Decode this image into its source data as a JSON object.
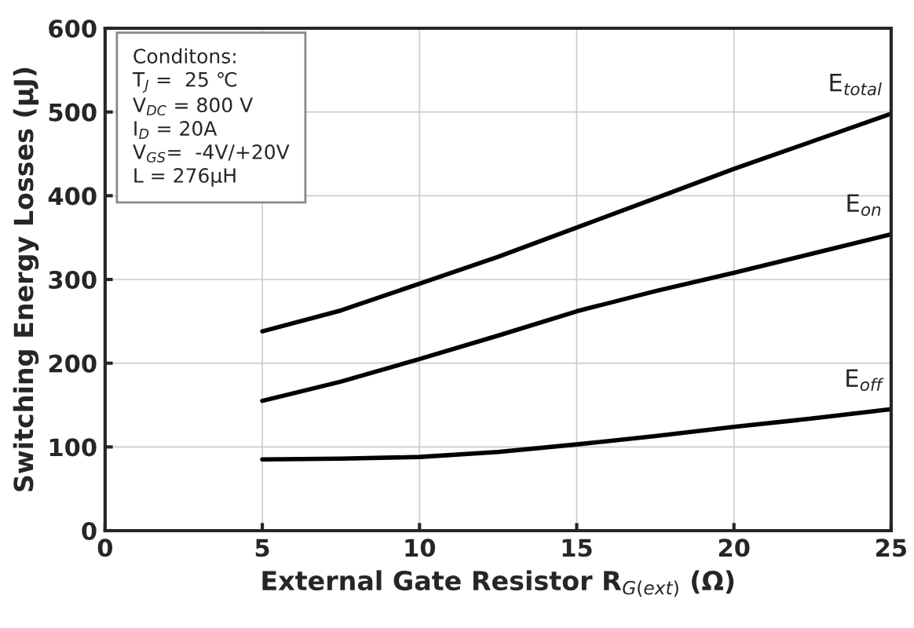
{
  "chart_data": {
    "type": "line",
    "xlabel": "External Gate Resistor R$_{G(ext)}$ (Ω)",
    "ylabel": "Switching Energy Losses (µJ)",
    "x": [
      5,
      7.5,
      10,
      12.5,
      15,
      17.5,
      20,
      22.5,
      25
    ],
    "series": [
      {
        "name": "E$_{total}$",
        "color": "#000000",
        "values": [
          238,
          263,
          295,
          327,
          362,
          397,
          432,
          465,
          498
        ]
      },
      {
        "name": "E$_{on}$",
        "color": "#000000",
        "values": [
          155,
          178,
          205,
          233,
          262,
          286,
          308,
          331,
          354
        ]
      },
      {
        "name": "E$_{off}$",
        "color": "#000000",
        "values": [
          85,
          86,
          88,
          94,
          103,
          113,
          124,
          134,
          145
        ]
      }
    ],
    "annotations": [
      "Conditons:\nT$_{J}$ =  25 ℃\nV$_{DC}$ = 800 V\nI$_{D}$ = 20A\nV$_{GS}$=  -4V/+20V\nL = 276μH"
    ],
    "xlim": [
      0,
      25
    ],
    "xticks": [
      0,
      5,
      10,
      15,
      20,
      25
    ],
    "ylim": [
      0,
      600
    ],
    "yticks": [
      0,
      100,
      200,
      300,
      400,
      500,
      600
    ],
    "grid": true,
    "legend": false,
    "marker": "none",
    "line_style": "solid"
  }
}
